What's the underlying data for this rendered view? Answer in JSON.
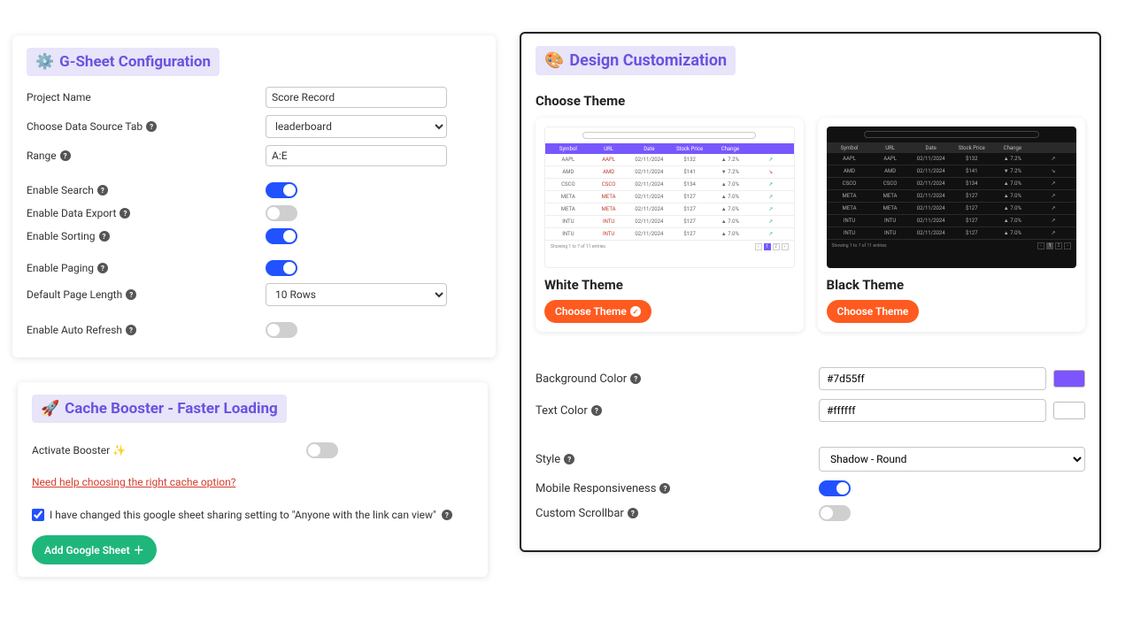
{
  "sheet": {
    "title": "G-Sheet Configuration",
    "icon": "⚙️",
    "project_lbl": "Project Name",
    "project_val": "Score Record",
    "source_lbl": "Choose Data Source Tab",
    "source_val": "leaderboard",
    "range_lbl": "Range",
    "range_val": "A:E",
    "search_lbl": "Enable Search",
    "search_on": true,
    "export_lbl": "Enable Data Export",
    "export_on": false,
    "sort_lbl": "Enable Sorting",
    "sort_on": true,
    "paging_lbl": "Enable Paging",
    "paging_on": true,
    "pagelen_lbl": "Default Page Length",
    "pagelen_val": "10 Rows",
    "refresh_lbl": "Enable Auto Refresh",
    "refresh_on": false
  },
  "cache": {
    "icon": "🚀",
    "title": "Cache Booster - Faster Loading",
    "activate_lbl": "Activate Booster ✨",
    "activate_on": false,
    "help_link": "Need help choosing the right cache option?",
    "share_lbl": "I have changed this google sheet sharing setting to \"Anyone with the link can view\"",
    "share_checked": true,
    "add_btn": "Add Google Sheet"
  },
  "design": {
    "icon": "🎨",
    "title": "Design Customization",
    "choose_theme": "Choose Theme",
    "white_title": "White Theme",
    "black_title": "Black Theme",
    "choose_btn": "Choose Theme",
    "preview_cols": [
      "Symbol",
      "URL",
      "Date",
      "Stock Price",
      "Change",
      ""
    ],
    "preview_rows": [
      [
        "AAPL",
        "AAPL",
        "02/11/2024",
        "$132",
        "▲ 7.2%",
        "↗"
      ],
      [
        "AMD",
        "AMD",
        "02/11/2024",
        "$141",
        "▼ 7.2%",
        "↘"
      ],
      [
        "CSCO",
        "CSCO",
        "02/11/2024",
        "$134",
        "▲ 7.0%",
        "↗"
      ],
      [
        "META",
        "META",
        "02/11/2024",
        "$127",
        "▲ 7.0%",
        "↗"
      ],
      [
        "META",
        "META",
        "02/11/2024",
        "$127",
        "▲ 7.0%",
        "↗"
      ],
      [
        "INTU",
        "INTU",
        "02/11/2024",
        "$127",
        "▲ 7.0%",
        "↗"
      ],
      [
        "INTU",
        "INTU",
        "02/11/2024",
        "$127",
        "▲ 7.0%",
        "↗"
      ]
    ],
    "preview_footer": "Showing 1 to 7 of 11 entries",
    "bg_lbl": "Background Color",
    "bg_val": "#7d55ff",
    "txt_lbl": "Text Color",
    "txt_val": "#ffffff",
    "style_lbl": "Style",
    "style_val": "Shadow - Round",
    "mobile_lbl": "Mobile Responsiveness",
    "mobile_on": true,
    "scroll_lbl": "Custom Scrollbar",
    "scroll_on": false
  },
  "colors": {
    "accent_purple": "#6a52e0",
    "toggle_on": "#2251ff",
    "btn_green": "#1fb67b",
    "btn_orange": "#ff5a1f",
    "badge_bg": "#e8e4fa"
  }
}
